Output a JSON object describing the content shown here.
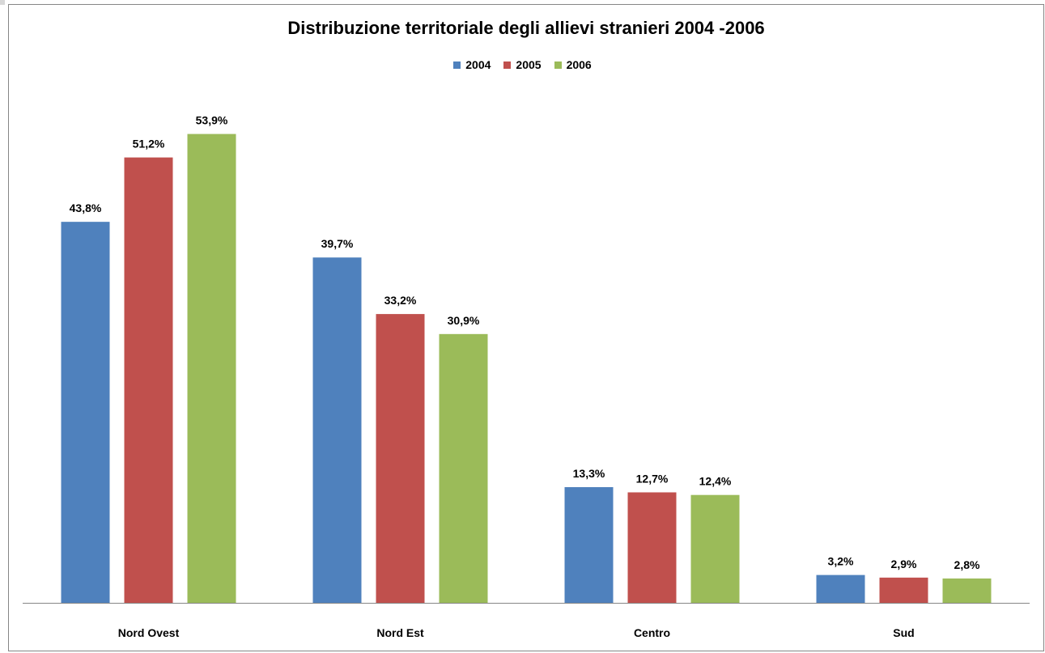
{
  "chart_data": {
    "type": "bar",
    "title": "Distribuzione territoriale degli allievi stranieri 2004 -2006",
    "xlabel": "",
    "ylabel": "",
    "ylim": [
      0,
      60
    ],
    "grid": false,
    "legend_position": "top",
    "categories": [
      "Nord Ovest",
      "Nord Est",
      "Centro",
      "Sud"
    ],
    "series": [
      {
        "name": "2004",
        "color": "#4f81bd",
        "values": [
          43.8,
          39.7,
          13.3,
          3.2
        ],
        "labels": [
          "43,8%",
          "39,7%",
          "13,3%",
          "3,2%"
        ]
      },
      {
        "name": "2005",
        "color": "#c0504d",
        "values": [
          51.2,
          33.2,
          12.7,
          2.9
        ],
        "labels": [
          "51,2%",
          "33,2%",
          "12,7%",
          "2,9%"
        ]
      },
      {
        "name": "2006",
        "color": "#9bbb59",
        "values": [
          53.9,
          30.9,
          12.4,
          2.8
        ],
        "labels": [
          "53,9%",
          "30,9%",
          "12,4%",
          "2,8%"
        ]
      }
    ]
  }
}
